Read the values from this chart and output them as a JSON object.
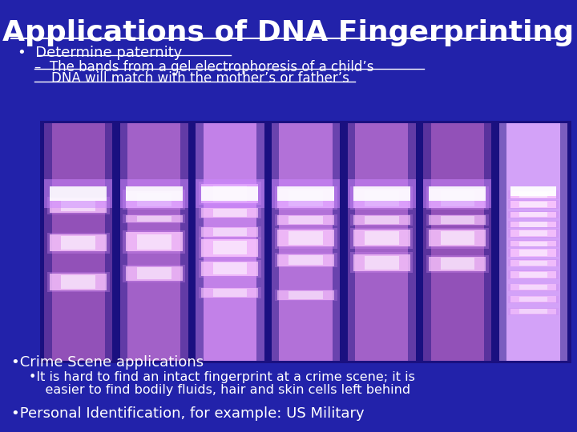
{
  "title": "Applications of DNA Fingerprinting",
  "background_color": "#2222aa",
  "title_color": "#ffffff",
  "title_fontsize": 26,
  "text_color": "#ffffff",
  "bullet1": "Determine paternity",
  "subbullet1_line1": "–  The bands from a gel electrophoresis of a child’s",
  "subbullet1_line2": "    DNA will match with the mother’s or father’s",
  "bullet2": "•Crime Scene applications",
  "subbullet2_line1": "•It is hard to find an intact fingerprint at a crime scene; it is",
  "subbullet2_line2": "    easier to find bodily fluids, hair and skin cells left behind",
  "bullet3": "•Personal Identification, for example: US Military",
  "gel_bg_color": "#1a1080",
  "lane_color": "#9955bb",
  "band_color_main": "#ffccff",
  "band_color_bright": "#ffffff",
  "band_glow_color": "#cc88ee"
}
